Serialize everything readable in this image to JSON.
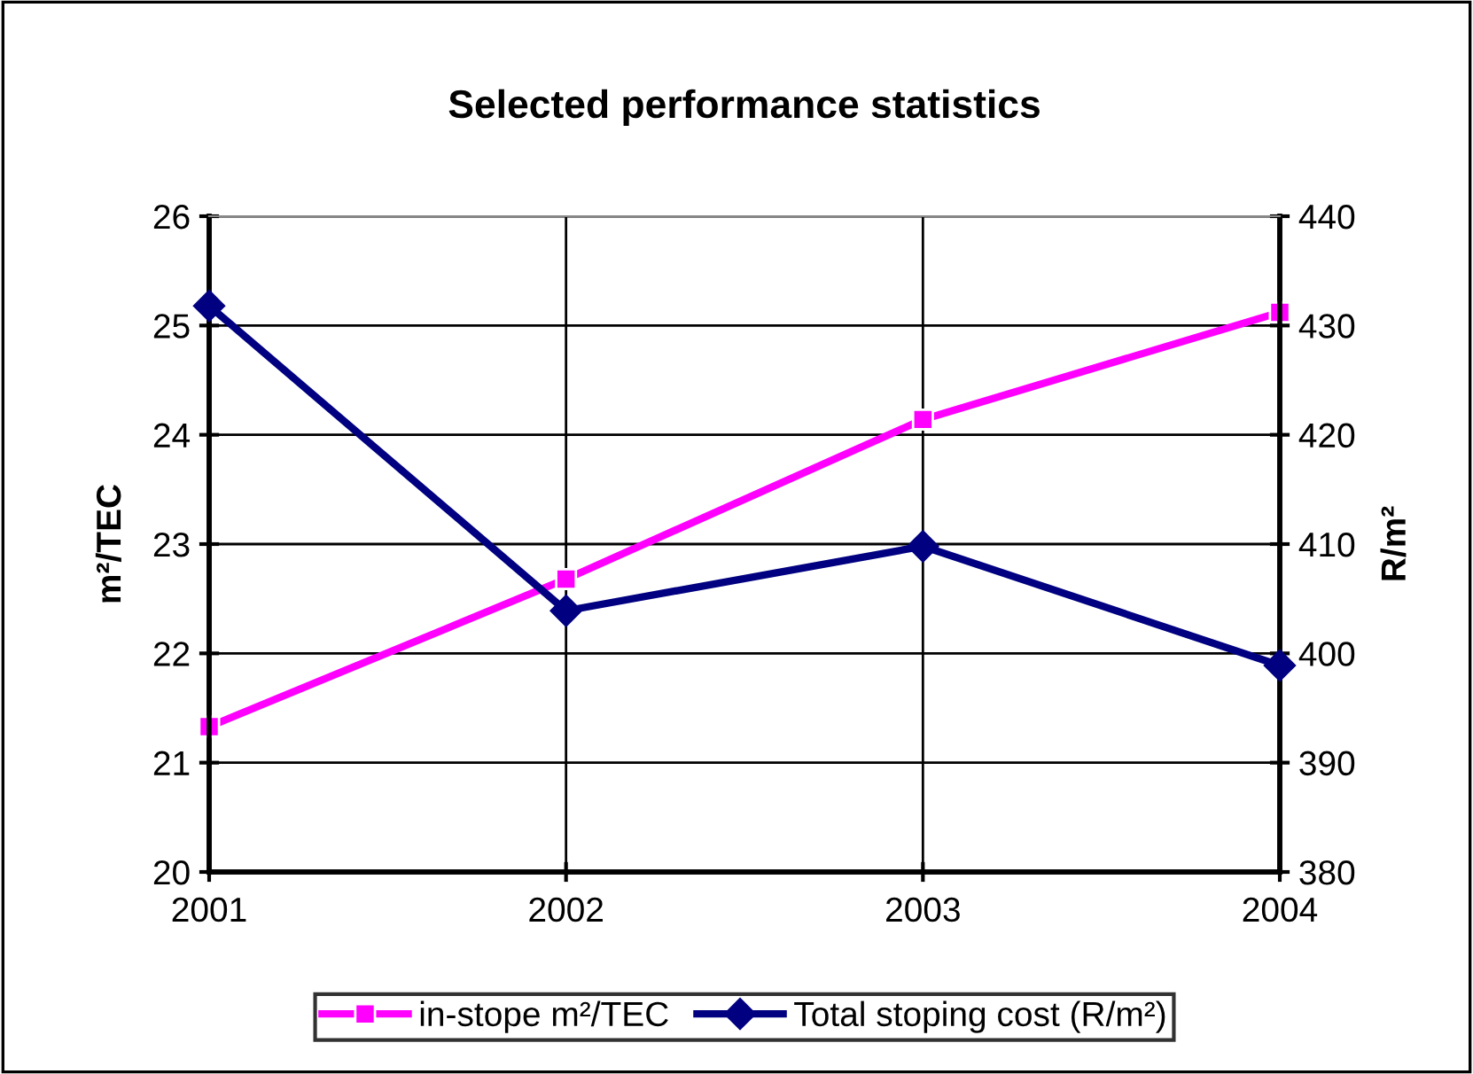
{
  "chart_data": {
    "type": "line",
    "title": "Selected performance statistics",
    "ylabel": "m²/TEC",
    "y2label": "R/m²",
    "categories": [
      "2001",
      "2002",
      "2003",
      "2004"
    ],
    "series": [
      {
        "name": "in-stope m²/TEC",
        "color": "#ff00ff",
        "marker": "square",
        "values": [
          21.33,
          22.68,
          24.14,
          25.12
        ]
      },
      {
        "name": "Total stoping cost (R/m²)",
        "color": "#000080",
        "marker": "diamond",
        "axis": "y2",
        "values": [
          431.8,
          403.9,
          409.8,
          398.9
        ]
      }
    ],
    "ylim": [
      20,
      26
    ],
    "yticks": [
      20,
      21,
      22,
      23,
      24,
      25,
      26
    ],
    "y2lim": [
      380,
      440
    ],
    "y2ticks": [
      380,
      390,
      400,
      410,
      420,
      430,
      440
    ],
    "grid": true,
    "legend": "bottom",
    "line_style": "solid"
  }
}
